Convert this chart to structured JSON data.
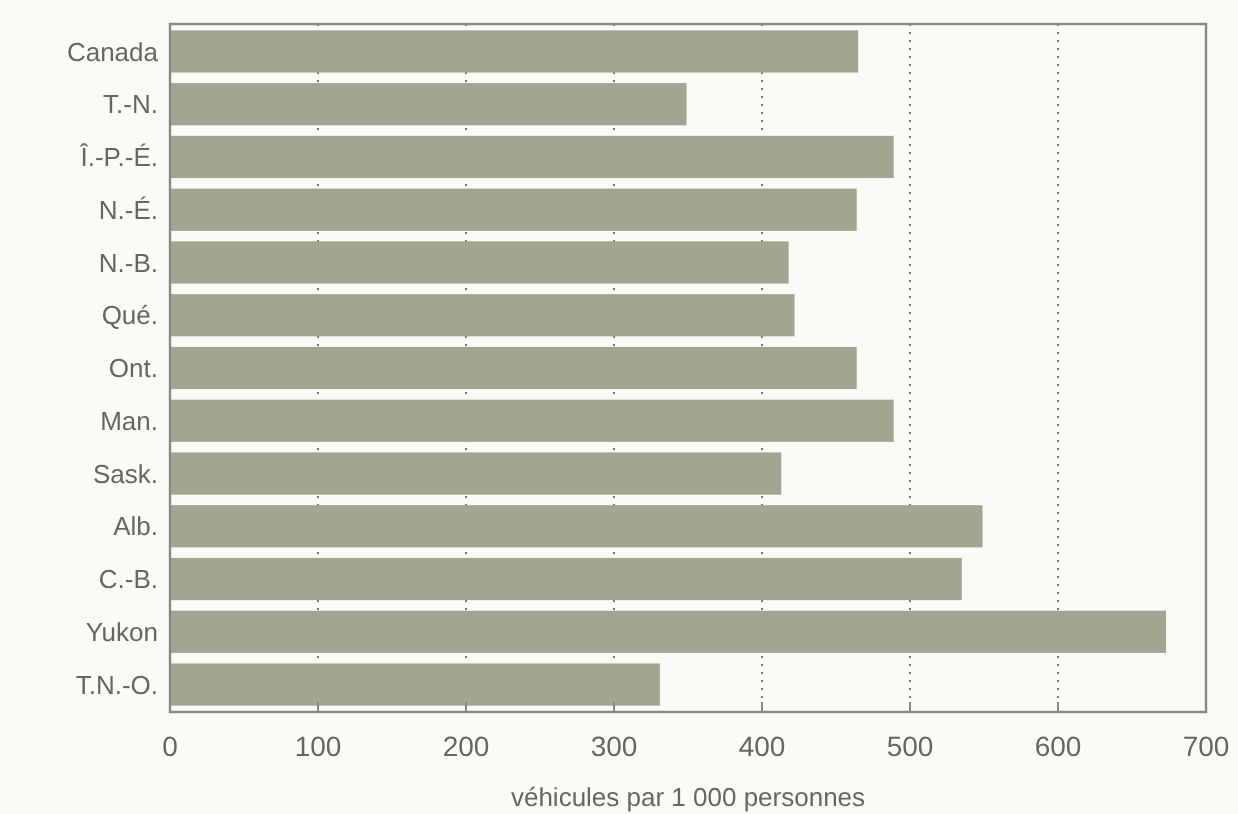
{
  "chart_data": {
    "type": "bar",
    "orientation": "horizontal",
    "xlabel": "véhicules par 1 000 personnes",
    "categories": [
      "Canada",
      "T.-N.",
      "Î.-P.-É.",
      "N.-É.",
      "N.-B.",
      "Qué.",
      "Ont.",
      "Man.",
      "Sask.",
      "Alb.",
      "C.-B.",
      "Yukon",
      "T.N.-O."
    ],
    "values": [
      465,
      349,
      489,
      464,
      418,
      422,
      464,
      489,
      413,
      549,
      535,
      673,
      331
    ],
    "color": "#a2a58f",
    "xlim": [
      0,
      700
    ],
    "xticks": [
      0,
      100,
      200,
      300,
      400,
      500,
      600,
      700
    ],
    "grid": "x"
  }
}
